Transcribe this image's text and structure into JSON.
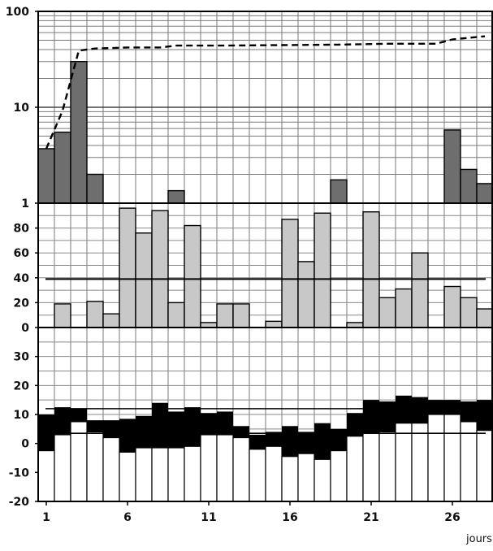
{
  "chart_data": [
    {
      "id": "top",
      "type": "bar",
      "yscale": "log",
      "ylim": [
        1,
        100
      ],
      "yticks": [
        "1",
        "10",
        "100"
      ],
      "colors": {
        "bar": "#6e6e6e",
        "line": "#000000"
      },
      "days": [
        1,
        2,
        3,
        4,
        9,
        19,
        26,
        27,
        28
      ],
      "values": [
        3.7,
        5.5,
        30,
        2.0,
        1.35,
        1.75,
        5.8,
        2.25,
        1.6
      ],
      "line": {
        "style": "dashed",
        "x": [
          1,
          2,
          3,
          4,
          6,
          8,
          9,
          12,
          19,
          22,
          25,
          26,
          27,
          28
        ],
        "y": [
          3.7,
          9.2,
          39,
          41,
          42,
          42,
          44,
          44,
          45,
          46,
          46,
          51,
          53,
          55
        ]
      }
    },
    {
      "id": "middle",
      "type": "bar",
      "ylim": [
        0,
        100
      ],
      "yticks": [
        "0",
        "20",
        "40",
        "60",
        "80"
      ],
      "colors": {
        "bar": "#c8c8c8",
        "line": "#000000"
      },
      "days": [
        2,
        4,
        5,
        6,
        7,
        8,
        9,
        10,
        11,
        12,
        13,
        15,
        16,
        17,
        18,
        20,
        21,
        22,
        23,
        24,
        26,
        27,
        28
      ],
      "values": [
        19,
        21,
        11,
        96,
        76,
        94,
        20,
        82,
        4,
        19,
        19,
        5,
        87,
        53,
        92,
        4,
        93,
        24,
        31,
        60,
        33,
        24,
        15
      ],
      "reference_line": 39
    },
    {
      "id": "bottom",
      "type": "bar",
      "ylim": [
        -20,
        40
      ],
      "yticks": [
        "-20",
        "-10",
        "0",
        "10",
        "20",
        "30"
      ],
      "colors": {
        "band": "#000000",
        "bar": "#ffffff"
      },
      "days": [
        1,
        2,
        3,
        4,
        5,
        6,
        7,
        8,
        9,
        10,
        11,
        12,
        13,
        14,
        15,
        16,
        17,
        18,
        19,
        20,
        21,
        22,
        23,
        24,
        25,
        26,
        27,
        28
      ],
      "max": [
        10,
        12.5,
        12,
        8,
        8,
        8.5,
        9.5,
        14,
        11,
        12.5,
        10.5,
        11,
        6,
        3,
        4,
        6,
        4,
        7,
        5,
        10.5,
        15,
        14.5,
        16.5,
        16,
        15,
        15,
        14.5,
        15
      ],
      "min": [
        -2.5,
        3,
        7.5,
        4,
        2,
        -3,
        -1.5,
        -1.5,
        -1.5,
        -1,
        3,
        3,
        2,
        -2,
        -1,
        -4.5,
        -3.5,
        -5.5,
        -2.5,
        2.5,
        3.5,
        4,
        7,
        7,
        10,
        10,
        7.5,
        4.5
      ],
      "reference_lines": [
        12,
        3.5
      ]
    }
  ],
  "x_axis": {
    "ticks": [
      "1",
      "6",
      "11",
      "16",
      "21",
      "26"
    ],
    "label": "jours"
  }
}
